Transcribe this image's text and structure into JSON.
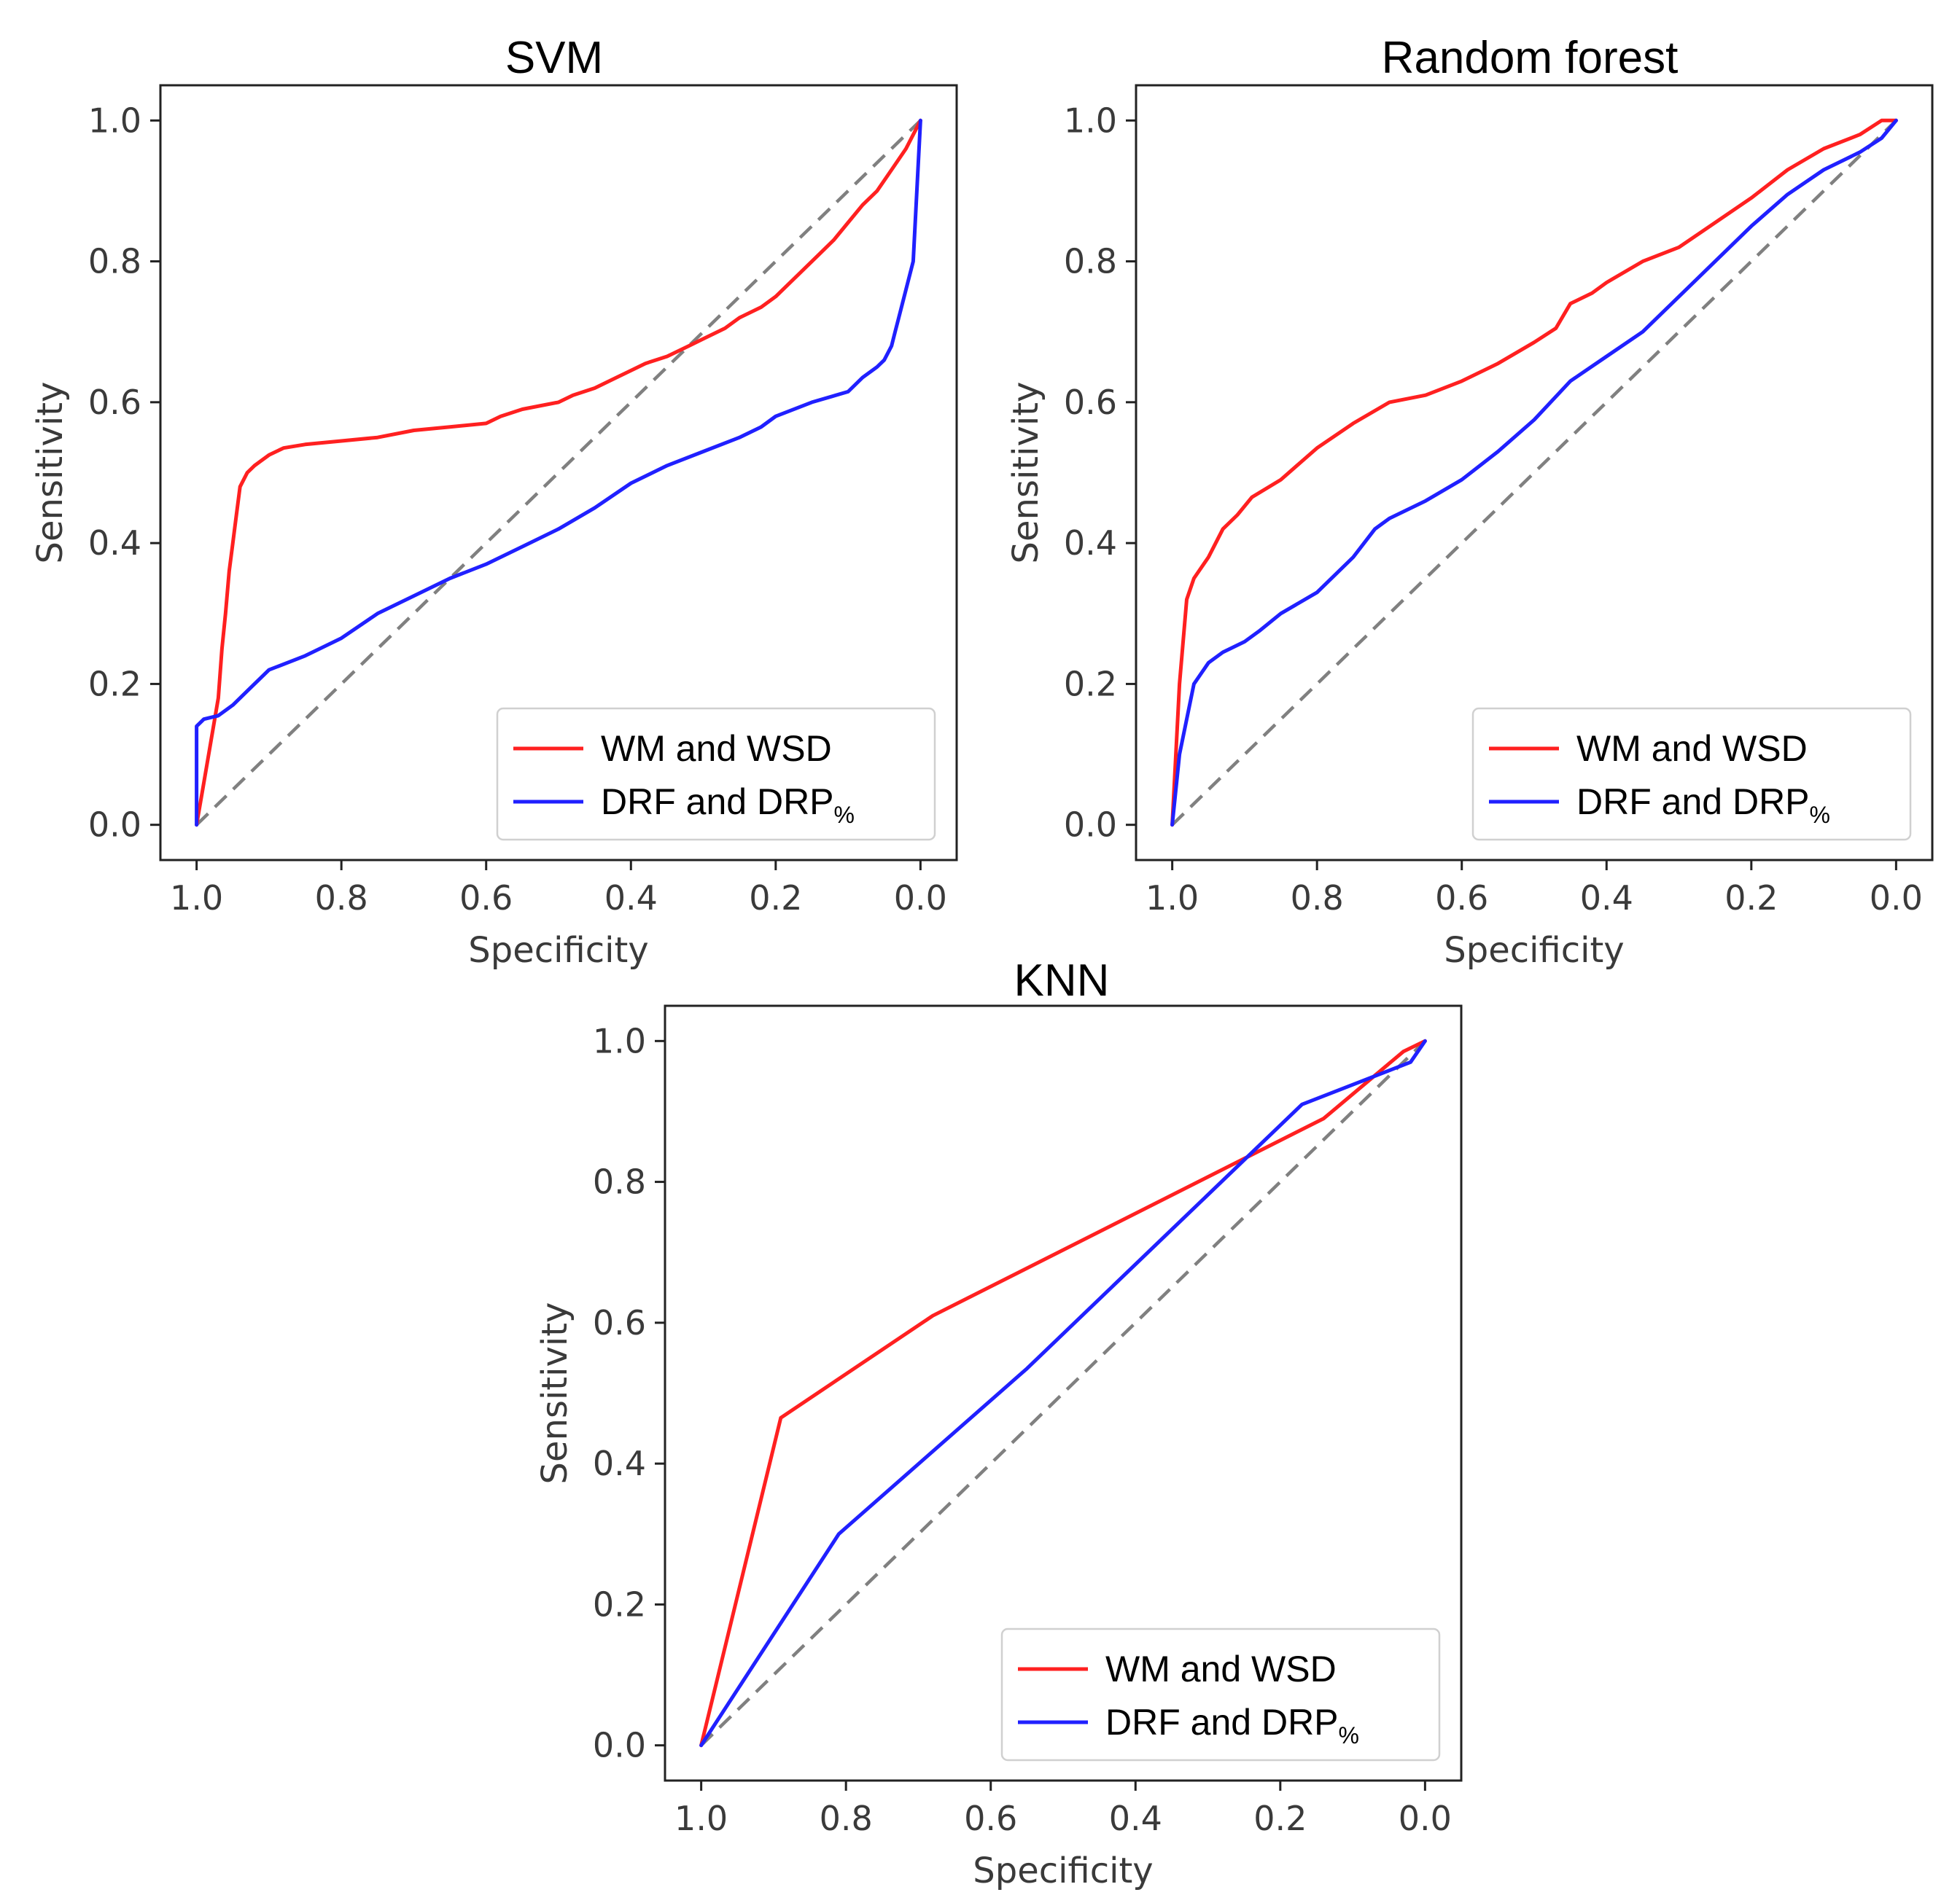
{
  "chart_data": [
    {
      "type": "line",
      "title": "SVM",
      "xlabel": "Specificity",
      "ylabel": "Sensitivity",
      "xlim": [
        1.05,
        -0.05
      ],
      "ylim": [
        -0.05,
        1.05
      ],
      "x_reversed": true,
      "xticks": [
        "1.0",
        "0.8",
        "0.6",
        "0.4",
        "0.2",
        "0.0"
      ],
      "yticks": [
        "0.0",
        "0.2",
        "0.4",
        "0.6",
        "0.8",
        "1.0"
      ],
      "grid": false,
      "legend_placement": "lower-right",
      "reference_line": {
        "style": "dashed",
        "color": "#808080",
        "x": [
          1.0,
          0.0
        ],
        "y": [
          0.0,
          1.0
        ]
      },
      "series": [
        {
          "name": "WM and WSD",
          "color": "#ff2020",
          "x": [
            1.0,
            0.99,
            0.98,
            0.97,
            0.965,
            0.96,
            0.955,
            0.95,
            0.945,
            0.94,
            0.93,
            0.92,
            0.9,
            0.88,
            0.85,
            0.8,
            0.75,
            0.7,
            0.65,
            0.6,
            0.58,
            0.55,
            0.5,
            0.48,
            0.45,
            0.42,
            0.4,
            0.38,
            0.35,
            0.32,
            0.3,
            0.27,
            0.25,
            0.22,
            0.2,
            0.18,
            0.16,
            0.14,
            0.12,
            0.1,
            0.08,
            0.06,
            0.04,
            0.02,
            0.0
          ],
          "y": [
            0.0,
            0.06,
            0.12,
            0.18,
            0.25,
            0.3,
            0.36,
            0.4,
            0.44,
            0.48,
            0.5,
            0.51,
            0.525,
            0.535,
            0.54,
            0.545,
            0.55,
            0.56,
            0.565,
            0.57,
            0.58,
            0.59,
            0.6,
            0.61,
            0.62,
            0.635,
            0.645,
            0.655,
            0.665,
            0.68,
            0.69,
            0.705,
            0.72,
            0.735,
            0.75,
            0.77,
            0.79,
            0.81,
            0.83,
            0.855,
            0.88,
            0.9,
            0.93,
            0.96,
            1.0
          ]
        },
        {
          "name": "DRF and DRP%",
          "color": "#2020ff",
          "x": [
            1.0,
            1.0,
            0.99,
            0.97,
            0.95,
            0.93,
            0.9,
            0.85,
            0.8,
            0.75,
            0.7,
            0.65,
            0.6,
            0.55,
            0.5,
            0.45,
            0.4,
            0.35,
            0.3,
            0.25,
            0.22,
            0.2,
            0.15,
            0.1,
            0.08,
            0.06,
            0.05,
            0.04,
            0.035,
            0.03,
            0.02,
            0.01,
            0.0
          ],
          "y": [
            0.0,
            0.14,
            0.15,
            0.155,
            0.17,
            0.19,
            0.22,
            0.24,
            0.265,
            0.3,
            0.325,
            0.35,
            0.37,
            0.395,
            0.42,
            0.45,
            0.485,
            0.51,
            0.53,
            0.55,
            0.565,
            0.58,
            0.6,
            0.615,
            0.635,
            0.65,
            0.66,
            0.68,
            0.7,
            0.72,
            0.76,
            0.8,
            1.0
          ]
        }
      ]
    },
    {
      "type": "line",
      "title": "Random forest",
      "xlabel": "Specificity",
      "ylabel": "Sensitivity",
      "xlim": [
        1.05,
        -0.05
      ],
      "ylim": [
        -0.05,
        1.05
      ],
      "x_reversed": true,
      "xticks": [
        "1.0",
        "0.8",
        "0.6",
        "0.4",
        "0.2",
        "0.0"
      ],
      "yticks": [
        "0.0",
        "0.2",
        "0.4",
        "0.6",
        "0.8",
        "1.0"
      ],
      "grid": false,
      "legend_placement": "lower-right",
      "reference_line": {
        "style": "dashed",
        "color": "#808080",
        "x": [
          1.0,
          0.0
        ],
        "y": [
          0.0,
          1.0
        ]
      },
      "series": [
        {
          "name": "WM and WSD",
          "color": "#ff2020",
          "x": [
            1.0,
            0.99,
            0.98,
            0.97,
            0.95,
            0.93,
            0.91,
            0.89,
            0.85,
            0.8,
            0.75,
            0.7,
            0.65,
            0.6,
            0.55,
            0.5,
            0.47,
            0.45,
            0.42,
            0.4,
            0.35,
            0.3,
            0.25,
            0.2,
            0.15,
            0.1,
            0.05,
            0.02,
            0.0
          ],
          "y": [
            0.0,
            0.2,
            0.32,
            0.35,
            0.38,
            0.42,
            0.44,
            0.465,
            0.49,
            0.535,
            0.57,
            0.6,
            0.61,
            0.63,
            0.655,
            0.685,
            0.705,
            0.74,
            0.755,
            0.77,
            0.8,
            0.82,
            0.855,
            0.89,
            0.93,
            0.96,
            0.98,
            1.0,
            1.0
          ]
        },
        {
          "name": "DRF and DRP%",
          "color": "#2020ff",
          "x": [
            1.0,
            0.99,
            0.97,
            0.95,
            0.93,
            0.9,
            0.88,
            0.85,
            0.8,
            0.75,
            0.72,
            0.7,
            0.65,
            0.6,
            0.55,
            0.5,
            0.45,
            0.4,
            0.35,
            0.3,
            0.25,
            0.2,
            0.15,
            0.1,
            0.05,
            0.02,
            0.0
          ],
          "y": [
            0.0,
            0.1,
            0.2,
            0.23,
            0.245,
            0.26,
            0.275,
            0.3,
            0.33,
            0.38,
            0.42,
            0.435,
            0.46,
            0.49,
            0.53,
            0.575,
            0.63,
            0.665,
            0.7,
            0.75,
            0.8,
            0.85,
            0.895,
            0.93,
            0.955,
            0.975,
            1.0
          ]
        }
      ]
    },
    {
      "type": "line",
      "title": "KNN",
      "xlabel": "Specificity",
      "ylabel": "Sensitivity",
      "xlim": [
        1.05,
        -0.05
      ],
      "ylim": [
        -0.05,
        1.05
      ],
      "x_reversed": true,
      "xticks": [
        "1.0",
        "0.8",
        "0.6",
        "0.4",
        "0.2",
        "0.0"
      ],
      "yticks": [
        "0.0",
        "0.2",
        "0.4",
        "0.6",
        "0.8",
        "1.0"
      ],
      "grid": false,
      "legend_placement": "lower-right",
      "reference_line": {
        "style": "dashed",
        "color": "#808080",
        "x": [
          1.0,
          0.0
        ],
        "y": [
          0.0,
          1.0
        ]
      },
      "series": [
        {
          "name": "WM and WSD",
          "color": "#ff2020",
          "x": [
            1.0,
            0.89,
            0.68,
            0.14,
            0.03,
            0.0
          ],
          "y": [
            0.0,
            0.465,
            0.61,
            0.89,
            0.985,
            1.0
          ]
        },
        {
          "name": "DRF and DRP%",
          "color": "#2020ff",
          "x": [
            1.0,
            0.81,
            0.55,
            0.17,
            0.02,
            0.0
          ],
          "y": [
            0.0,
            0.3,
            0.535,
            0.91,
            0.97,
            1.0
          ]
        }
      ]
    }
  ]
}
